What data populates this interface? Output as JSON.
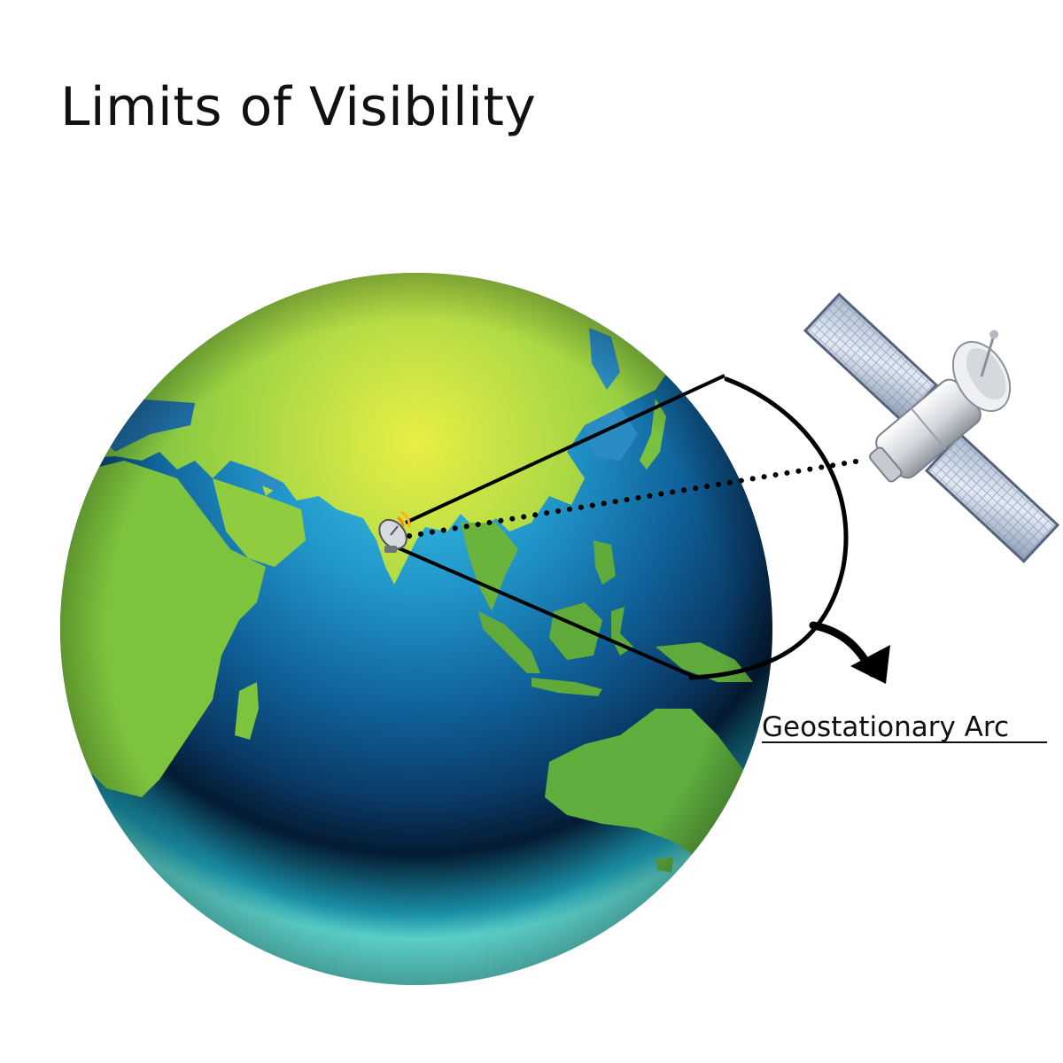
{
  "title": "Limits of Visibility",
  "arc_label": "Geostationary Arc",
  "colors": {
    "background": "#ffffff",
    "land": "#7cc43d",
    "ocean_light": "#35b0d8",
    "ocean_deep": "#0b3f6e",
    "polar_glow": "#e9ef45",
    "line": "#000000"
  },
  "icons": [
    "ground-station-dish-icon",
    "satellite-icon",
    "curved-arrow-icon"
  ]
}
